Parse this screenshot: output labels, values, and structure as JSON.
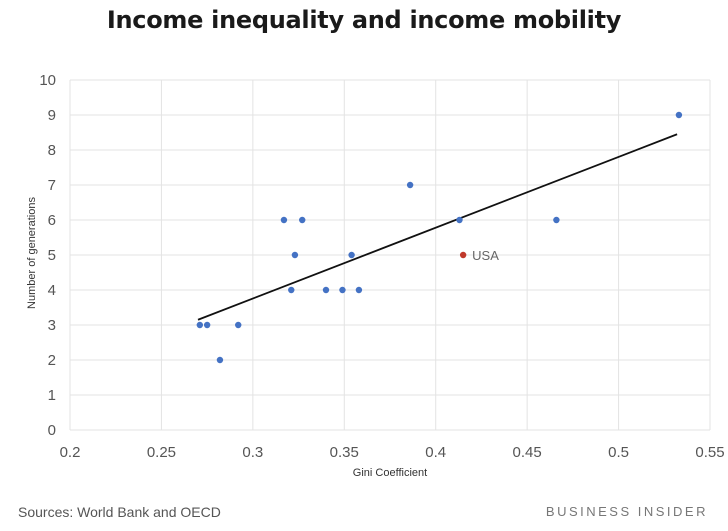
{
  "title": "Income inequality and income mobility",
  "source": "Sources: World Bank and OECD",
  "brand": "BUSINESS INSIDER",
  "colors": {
    "points": "#4472c4",
    "highlight": "#c0392b",
    "trend": "#111111",
    "grid": "#e3e3e3"
  },
  "chart_data": {
    "type": "scatter",
    "title": "Income inequality and income mobility",
    "xlabel": "Gini Coefficient",
    "ylabel": "Number of generations",
    "xlim": [
      0.2,
      0.55
    ],
    "ylim": [
      0,
      10
    ],
    "xticks": [
      "0.2",
      "0.25",
      "0.3",
      "0.35",
      "0.4",
      "0.45",
      "0.5",
      "0.55"
    ],
    "yticks": [
      "0",
      "1",
      "2",
      "3",
      "4",
      "5",
      "6",
      "7",
      "8",
      "9",
      "10"
    ],
    "grid": true,
    "series": [
      {
        "points": [
          [
            0.271,
            3
          ],
          [
            0.275,
            3
          ],
          [
            0.282,
            2
          ],
          [
            0.292,
            3
          ],
          [
            0.317,
            6
          ],
          [
            0.321,
            4
          ],
          [
            0.323,
            5
          ],
          [
            0.327,
            6
          ],
          [
            0.34,
            4
          ],
          [
            0.349,
            4
          ],
          [
            0.354,
            5
          ],
          [
            0.358,
            4
          ],
          [
            0.386,
            7
          ],
          [
            0.413,
            6
          ],
          [
            0.466,
            6
          ],
          [
            0.533,
            9
          ]
        ]
      }
    ],
    "highlight": {
      "label": "USA",
      "x": 0.415,
      "y": 5
    },
    "trendline": {
      "x": [
        0.27,
        0.532
      ],
      "y": [
        3.15,
        8.45
      ]
    }
  }
}
